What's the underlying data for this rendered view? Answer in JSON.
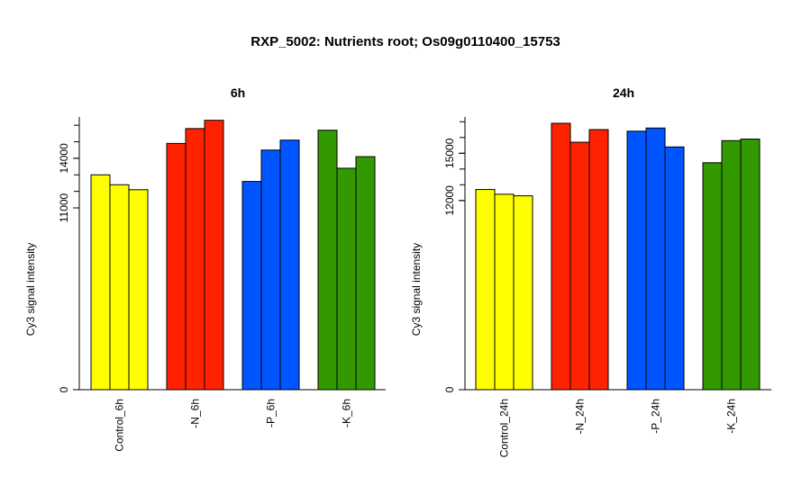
{
  "title": "RXP_5002: Nutrients root; Os09g0110400_15753",
  "chart_data": [
    {
      "type": "bar",
      "title": "6h",
      "ylabel": "Cy3 signal intensity",
      "ylim": [
        0,
        16500
      ],
      "yticks": [
        0,
        11000,
        14000
      ],
      "ytick_labels": [
        "0",
        "11000",
        "14000"
      ],
      "categories": [
        "Control_6h",
        "-N_6h",
        "-P_6h",
        "-K_6h"
      ],
      "colors": [
        "#ffff00",
        "#ff2200",
        "#0055ff",
        "#339900"
      ],
      "values": [
        [
          13000,
          12400,
          12100
        ],
        [
          14900,
          15800,
          16300
        ],
        [
          12600,
          14500,
          15100
        ],
        [
          15700,
          13400,
          14100
        ]
      ]
    },
    {
      "type": "bar",
      "title": "24h",
      "ylabel": "Cy3 signal intensity",
      "ylim": [
        0,
        17300
      ],
      "yticks": [
        0,
        12000,
        15000
      ],
      "ytick_labels": [
        "0",
        "12000",
        "15000"
      ],
      "categories": [
        "Control_24h",
        "-N_24h",
        "-P_24h",
        "-K_24h"
      ],
      "colors": [
        "#ffff00",
        "#ff2200",
        "#0055ff",
        "#339900"
      ],
      "values": [
        [
          12700,
          12400,
          12300
        ],
        [
          16900,
          15700,
          16500
        ],
        [
          16400,
          16600,
          15400
        ],
        [
          14400,
          15800,
          15900
        ]
      ]
    }
  ]
}
